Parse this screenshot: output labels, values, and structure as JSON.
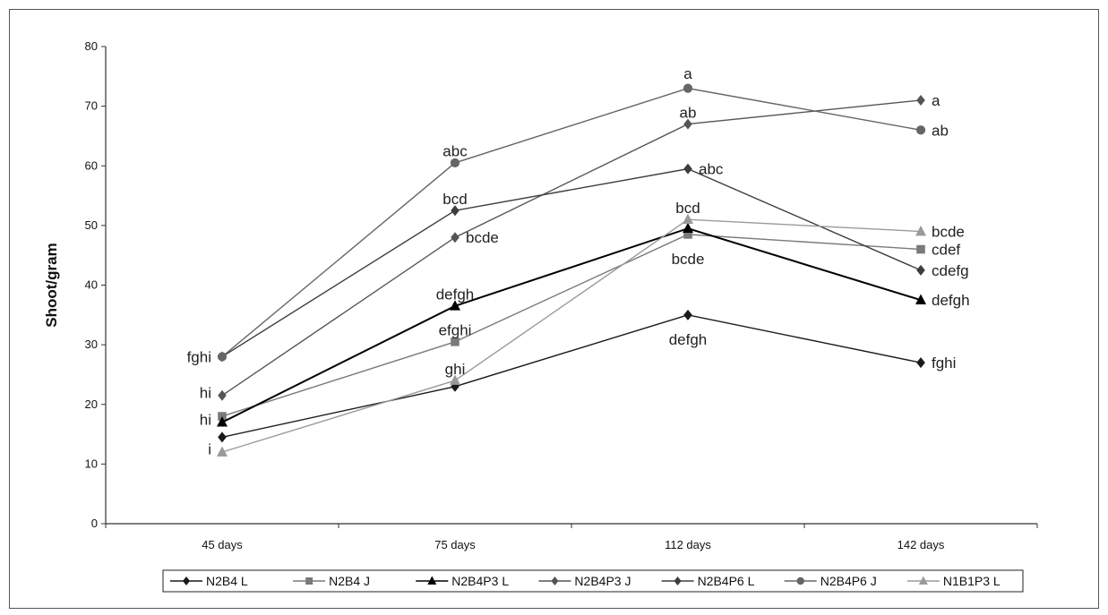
{
  "chart_data": {
    "type": "line",
    "title": "",
    "xlabel": "",
    "ylabel": "Shoot/gram",
    "ylim": [
      0,
      80
    ],
    "yticks": [
      "0",
      "10",
      "20",
      "30",
      "40",
      "50",
      "60",
      "70",
      "80"
    ],
    "categories": [
      "45 days",
      "75 days",
      "112 days",
      "142 days"
    ],
    "grid": false,
    "legend_position": "bottom",
    "series": [
      {
        "name": "N2B4 L",
        "color": "#1a1a1a",
        "marker": "diamond",
        "values": [
          14.5,
          23,
          35,
          27
        ]
      },
      {
        "name": "N2B4 J",
        "color": "#7a7a7a",
        "marker": "square",
        "values": [
          18,
          30.5,
          48.5,
          46
        ]
      },
      {
        "name": "N2B4P3 L",
        "color": "#000000",
        "marker": "triangle",
        "values": [
          17,
          36.5,
          49.5,
          37.5
        ]
      },
      {
        "name": "N2B4P3 J",
        "color": "#555555",
        "marker": "diamond",
        "values": [
          21.5,
          48,
          67,
          71
        ]
      },
      {
        "name": "N2B4P6 L",
        "color": "#3d3d3d",
        "marker": "diamond",
        "values": [
          28,
          52.5,
          59.5,
          42.5
        ]
      },
      {
        "name": "N2B4P6 J",
        "color": "#666666",
        "marker": "circle",
        "values": [
          28,
          60.5,
          73,
          66
        ]
      },
      {
        "name": "N1B1P3 L",
        "color": "#9a9a9a",
        "marker": "triangle",
        "values": [
          12,
          24,
          51,
          49
        ]
      }
    ],
    "annotations": [
      {
        "text": "fghi",
        "x": "45 days",
        "y": 28,
        "anchor": "left"
      },
      {
        "text": "hi",
        "x": "45 days",
        "y": 22,
        "anchor": "left"
      },
      {
        "text": "hi",
        "x": "45 days",
        "y": 17.5,
        "anchor": "left"
      },
      {
        "text": "i",
        "x": "45 days",
        "y": 12.5,
        "anchor": "left"
      },
      {
        "text": "abc",
        "x": "75 days",
        "y": 62.5,
        "anchor": "above"
      },
      {
        "text": "bcd",
        "x": "75 days",
        "y": 54.5,
        "anchor": "above"
      },
      {
        "text": "bcde",
        "x": "75 days",
        "y": 48,
        "anchor": "right"
      },
      {
        "text": "defgh",
        "x": "75 days",
        "y": 38.5,
        "anchor": "above"
      },
      {
        "text": "efghi",
        "x": "75 days",
        "y": 32.5,
        "anchor": "above"
      },
      {
        "text": "ghi",
        "x": "75 days",
        "y": 26,
        "anchor": "above"
      },
      {
        "text": "a",
        "x": "112 days",
        "y": 75.5,
        "anchor": "above"
      },
      {
        "text": "ab",
        "x": "112 days",
        "y": 69,
        "anchor": "above"
      },
      {
        "text": "abc",
        "x": "112 days",
        "y": 59.5,
        "anchor": "right"
      },
      {
        "text": "bcd",
        "x": "112 days",
        "y": 53,
        "anchor": "above"
      },
      {
        "text": "bcde",
        "x": "112 days",
        "y": 45,
        "anchor": "below"
      },
      {
        "text": "defgh",
        "x": "112 days",
        "y": 31.5,
        "anchor": "below"
      },
      {
        "text": "a",
        "x": "142 days",
        "y": 71,
        "anchor": "right"
      },
      {
        "text": "ab",
        "x": "142 days",
        "y": 66,
        "anchor": "right"
      },
      {
        "text": "bcde",
        "x": "142 days",
        "y": 49,
        "anchor": "right"
      },
      {
        "text": "cdef",
        "x": "142 days",
        "y": 46,
        "anchor": "right"
      },
      {
        "text": "cdefg",
        "x": "142 days",
        "y": 42.5,
        "anchor": "right"
      },
      {
        "text": "defgh",
        "x": "142 days",
        "y": 37.5,
        "anchor": "right"
      },
      {
        "text": "fghi",
        "x": "142 days",
        "y": 27,
        "anchor": "right"
      }
    ]
  }
}
